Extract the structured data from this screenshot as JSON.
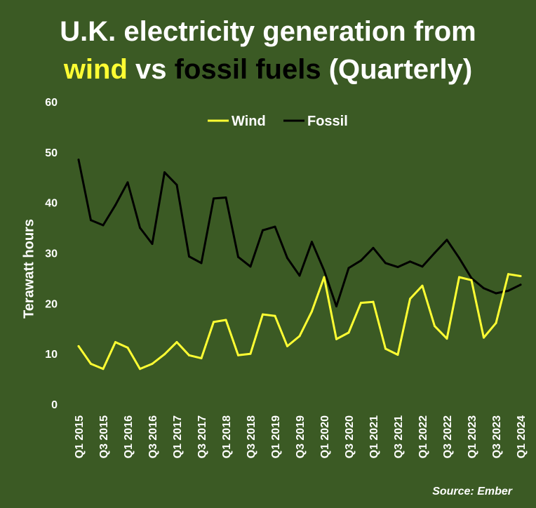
{
  "title": {
    "line1": "U.K. electricity generation from",
    "wind_word": "wind",
    "vs_word": " vs ",
    "fossil_word": "fossil fuels",
    "suffix": " (Quarterly)"
  },
  "source": "Source: Ember",
  "colors": {
    "background": "#3b5a24",
    "wind": "#ffff33",
    "fossil": "#000000",
    "text": "#ffffff"
  },
  "chart_data": {
    "type": "line",
    "title": "U.K. electricity generation from wind vs fossil fuels (Quarterly)",
    "xlabel": "",
    "ylabel": "Terawatt hours",
    "ylim": [
      0,
      60
    ],
    "yticks": [
      0,
      10,
      20,
      30,
      40,
      50,
      60
    ],
    "legend_position": "top-center",
    "x_tick_labels": [
      "Q1 2015",
      "Q3 2015",
      "Q1 2016",
      "Q3 2016",
      "Q1 2017",
      "Q3 2017",
      "Q1 2018",
      "Q3 2018",
      "Q1 2019",
      "Q3 2019",
      "Q1 2020",
      "Q3 2020",
      "Q1 2021",
      "Q3 2021",
      "Q1 2022",
      "Q3 2022",
      "Q1 2023",
      "Q3 2023",
      "Q1 2024"
    ],
    "quarters": [
      "Q1 2015",
      "Q2 2015",
      "Q3 2015",
      "Q4 2015",
      "Q1 2016",
      "Q2 2016",
      "Q3 2016",
      "Q4 2016",
      "Q1 2017",
      "Q2 2017",
      "Q3 2017",
      "Q4 2017",
      "Q1 2018",
      "Q2 2018",
      "Q3 2018",
      "Q4 2018",
      "Q1 2019",
      "Q2 2019",
      "Q3 2019",
      "Q4 2019",
      "Q1 2020",
      "Q2 2020",
      "Q3 2020",
      "Q4 2020",
      "Q1 2021",
      "Q2 2021",
      "Q3 2021",
      "Q4 2021",
      "Q1 2022",
      "Q2 2022",
      "Q3 2022",
      "Q4 2022",
      "Q1 2023",
      "Q2 2023",
      "Q3 2023",
      "Q4 2023",
      "Q1 2024"
    ],
    "series": [
      {
        "name": "Wind",
        "color": "#ffff33",
        "values": [
          11.5,
          8.0,
          7.0,
          12.3,
          11.2,
          7.0,
          8.0,
          9.9,
          12.3,
          9.7,
          9.1,
          16.3,
          16.7,
          9.7,
          10.0,
          17.8,
          17.5,
          11.5,
          13.5,
          18.4,
          25.2,
          12.9,
          14.2,
          20.1,
          20.3,
          11.0,
          9.8,
          20.9,
          23.5,
          15.5,
          13.0,
          25.2,
          24.6,
          13.2,
          16.1,
          25.8,
          25.4
        ]
      },
      {
        "name": "Fossil",
        "color": "#000000",
        "values": [
          48.5,
          36.5,
          35.5,
          39.5,
          44.0,
          35.0,
          31.8,
          46.0,
          43.5,
          29.3,
          28.0,
          40.8,
          41.0,
          29.2,
          27.3,
          34.5,
          35.2,
          29.0,
          25.5,
          32.2,
          26.5,
          19.4,
          27.0,
          28.5,
          31.0,
          28.0,
          27.2,
          28.3,
          27.3,
          30.0,
          32.6,
          29.0,
          25.0,
          23.0,
          22.0,
          22.5,
          23.7
        ]
      }
    ]
  }
}
